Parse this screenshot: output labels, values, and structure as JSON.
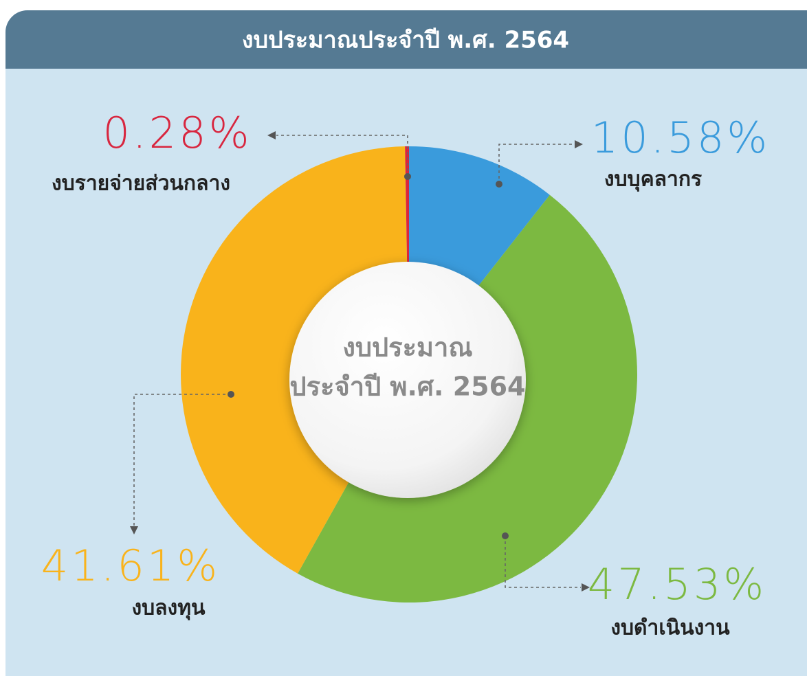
{
  "chart_data": {
    "type": "donut",
    "title": "งบประมาณประจำปี พ.ศ. 2564",
    "center_text": [
      "งบประมาณ",
      "ประจำปี พ.ศ. 2564"
    ],
    "categories": [
      "งบบุคลากร",
      "งบดำเนินงาน",
      "งบลงทุน",
      "งบรายจ่ายส่วนกลาง"
    ],
    "values": [
      10.58,
      47.53,
      41.61,
      0.28
    ],
    "value_labels": [
      "10.58%",
      "47.53%",
      "41.61%",
      "0.28%"
    ],
    "colors": [
      "#3a9bdc",
      "#7cb941",
      "#f9b31b",
      "#d8263f"
    ]
  }
}
